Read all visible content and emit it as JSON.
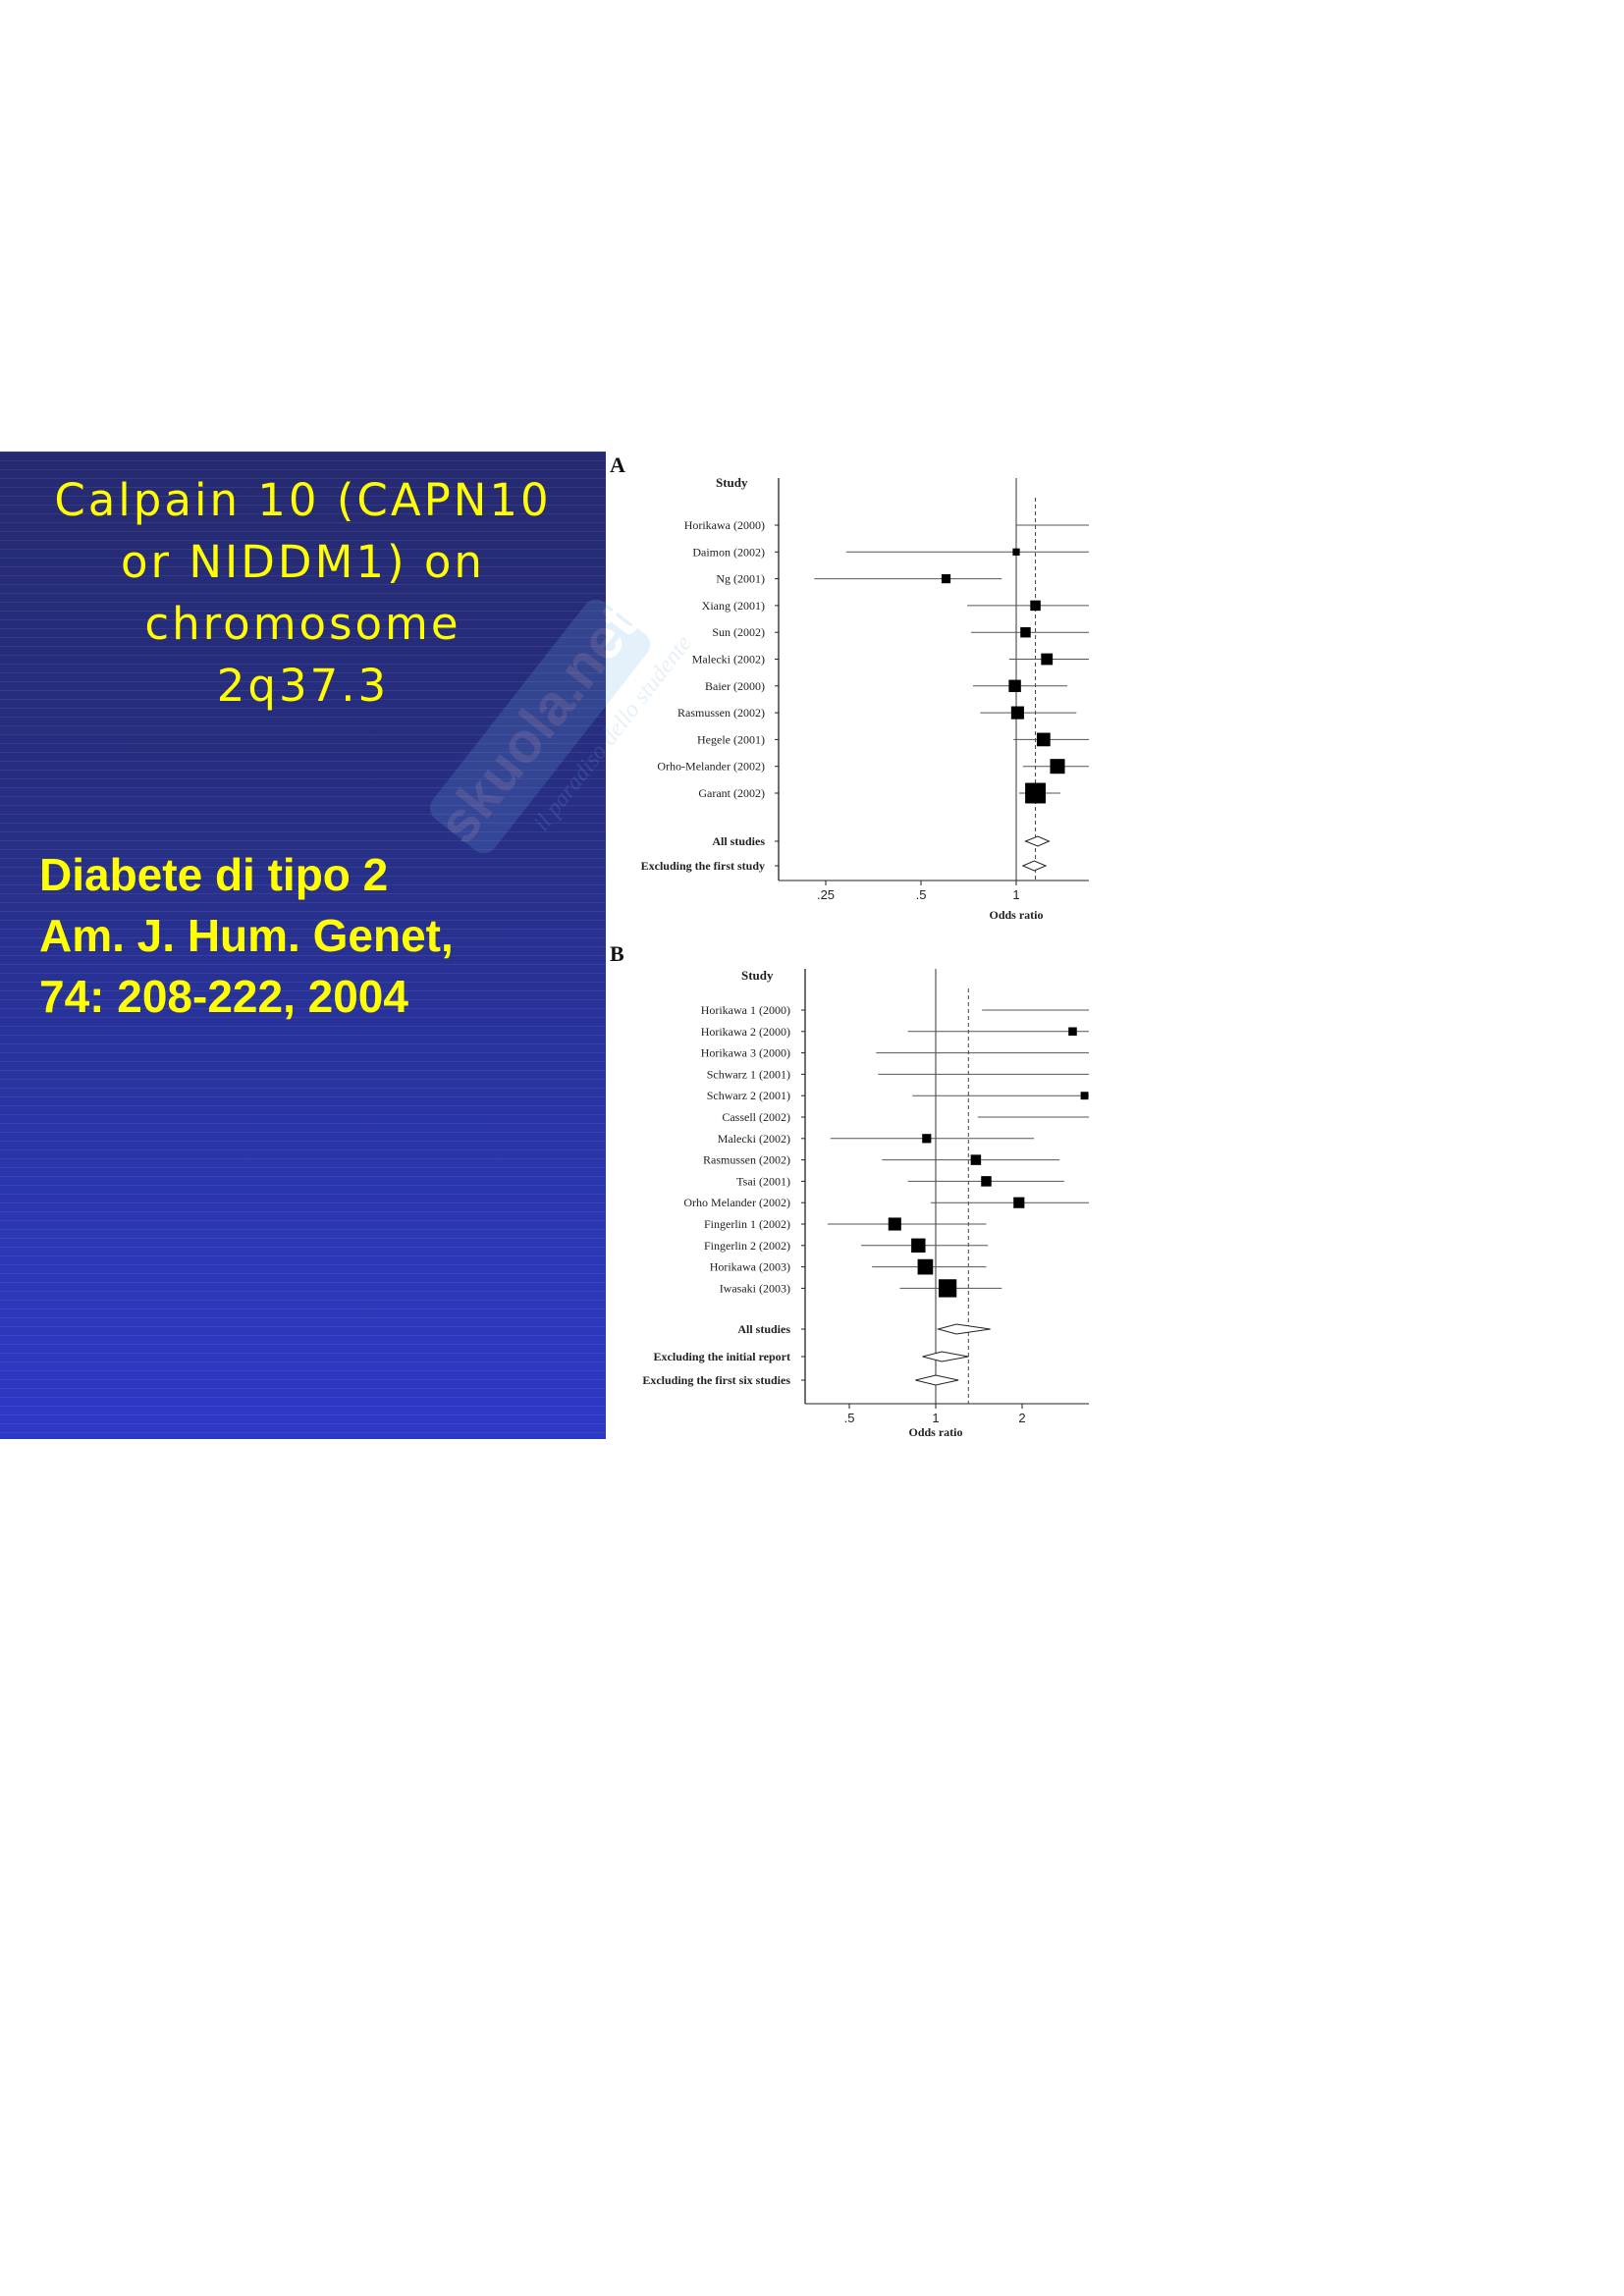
{
  "slide": {
    "title_lines": [
      "Calpain 10 (CAPN10",
      "or NIDDM1) on",
      "chromosome",
      "2q37.3"
    ],
    "subtitle_lines": [
      "Diabete di tipo 2",
      "Am. J. Hum. Genet,",
      "74: 208-222, 2004"
    ],
    "colors": {
      "panel": "#272f86",
      "text": "#ffff00"
    }
  },
  "watermark": {
    "text": "skuola.net",
    "tagline": "il paradiso dello studente"
  },
  "chart_data": [
    {
      "type": "forest",
      "panel_label": "A",
      "header": "Study",
      "xlabel": "Odds ratio",
      "x_scale": "log",
      "x_ticks": [
        ".25",
        ".5",
        "1"
      ],
      "x_tick_values": [
        0.25,
        0.5,
        1
      ],
      "reference_line": 1,
      "pooled_line": 1.15,
      "studies": [
        {
          "label": "Horikawa (2000)",
          "or": 1.8,
          "ci": [
            1.0,
            2.3
          ],
          "weight": 1
        },
        {
          "label": "Daimon (2002)",
          "or": 1.0,
          "ci": [
            0.29,
            2.0
          ],
          "weight": 0.5
        },
        {
          "label": "Ng (2001)",
          "or": 0.6,
          "ci": [
            0.23,
            0.9
          ],
          "weight": 0.8
        },
        {
          "label": "Xiang (2001)",
          "or": 1.15,
          "ci": [
            0.7,
            2.0
          ],
          "weight": 1
        },
        {
          "label": "Sun (2002)",
          "or": 1.07,
          "ci": [
            0.72,
            2.0
          ],
          "weight": 1
        },
        {
          "label": "Malecki (2002)",
          "or": 1.25,
          "ci": [
            0.95,
            2.0
          ],
          "weight": 1.2
        },
        {
          "label": "Baier (2000)",
          "or": 0.99,
          "ci": [
            0.73,
            1.45
          ],
          "weight": 1.3
        },
        {
          "label": "Rasmussen (2002)",
          "or": 1.01,
          "ci": [
            0.77,
            1.55
          ],
          "weight": 1.4
        },
        {
          "label": "Hegele (2001)",
          "or": 1.22,
          "ci": [
            0.98,
            2.0
          ],
          "weight": 1.5
        },
        {
          "label": "Orho-Melander (2002)",
          "or": 1.35,
          "ci": [
            1.05,
            2.0
          ],
          "weight": 1.7
        },
        {
          "label": "Garant (2002)",
          "or": 1.15,
          "ci": [
            1.02,
            1.38
          ],
          "weight": 2.6
        }
      ],
      "summaries": [
        {
          "label": "All studies",
          "or": 1.17,
          "ci": [
            1.07,
            1.27
          ]
        },
        {
          "label": "Excluding the first study",
          "or": 1.14,
          "ci": [
            1.05,
            1.24
          ]
        }
      ]
    },
    {
      "type": "forest",
      "panel_label": "B",
      "header": "Study",
      "xlabel": "Odds ratio",
      "x_scale": "log",
      "x_ticks": [
        ".5",
        "1",
        "2"
      ],
      "x_tick_values": [
        0.5,
        1,
        2
      ],
      "reference_line": 1,
      "pooled_line": 1.3,
      "studies": [
        {
          "label": "Horikawa 1 (2000)",
          "or": 3.6,
          "ci": [
            1.45,
            4.0
          ],
          "weight": 1.1
        },
        {
          "label": "Horikawa 2 (2000)",
          "or": 3.0,
          "ci": [
            0.8,
            4.0
          ],
          "weight": 0.7
        },
        {
          "label": "Horikawa 3 (2000)",
          "or": null,
          "ci": [
            0.62,
            4.0
          ],
          "weight": 0
        },
        {
          "label": "Schwarz 1 (2001)",
          "or": null,
          "ci": [
            0.63,
            4.0
          ],
          "weight": 0
        },
        {
          "label": "Schwarz 2 (2001)",
          "or": 3.3,
          "ci": [
            0.83,
            4.0
          ],
          "weight": 0.6
        },
        {
          "label": "Cassell (2002)",
          "or": null,
          "ci": [
            1.4,
            4.0
          ],
          "weight": 0
        },
        {
          "label": "Malecki (2002)",
          "or": 0.93,
          "ci": [
            0.43,
            2.2
          ],
          "weight": 0.8
        },
        {
          "label": "Rasmussen (2002)",
          "or": 1.38,
          "ci": [
            0.65,
            2.7
          ],
          "weight": 1
        },
        {
          "label": "Tsai (2001)",
          "or": 1.5,
          "ci": [
            0.8,
            2.8
          ],
          "weight": 1
        },
        {
          "label": "Orho Melander (2002)",
          "or": 1.95,
          "ci": [
            0.96,
            4.0
          ],
          "weight": 1.1
        },
        {
          "label": "Fingerlin 1 (2002)",
          "or": 0.72,
          "ci": [
            0.42,
            1.5
          ],
          "weight": 1.4
        },
        {
          "label": "Fingerlin 2 (2002)",
          "or": 0.87,
          "ci": [
            0.55,
            1.52
          ],
          "weight": 1.6
        },
        {
          "label": "Horikawa (2003)",
          "or": 0.92,
          "ci": [
            0.6,
            1.5
          ],
          "weight": 1.8
        },
        {
          "label": "Iwasaki (2003)",
          "or": 1.1,
          "ci": [
            0.75,
            1.7
          ],
          "weight": 2.2
        }
      ],
      "summaries": [
        {
          "label": "All studies",
          "or": 1.18,
          "ci": [
            1.02,
            1.55
          ]
        },
        {
          "label": "Excluding the initial report",
          "or": 1.05,
          "ci": [
            0.9,
            1.3
          ]
        },
        {
          "label": "Excluding the first six studies",
          "or": 1.0,
          "ci": [
            0.85,
            1.2
          ]
        }
      ]
    }
  ]
}
